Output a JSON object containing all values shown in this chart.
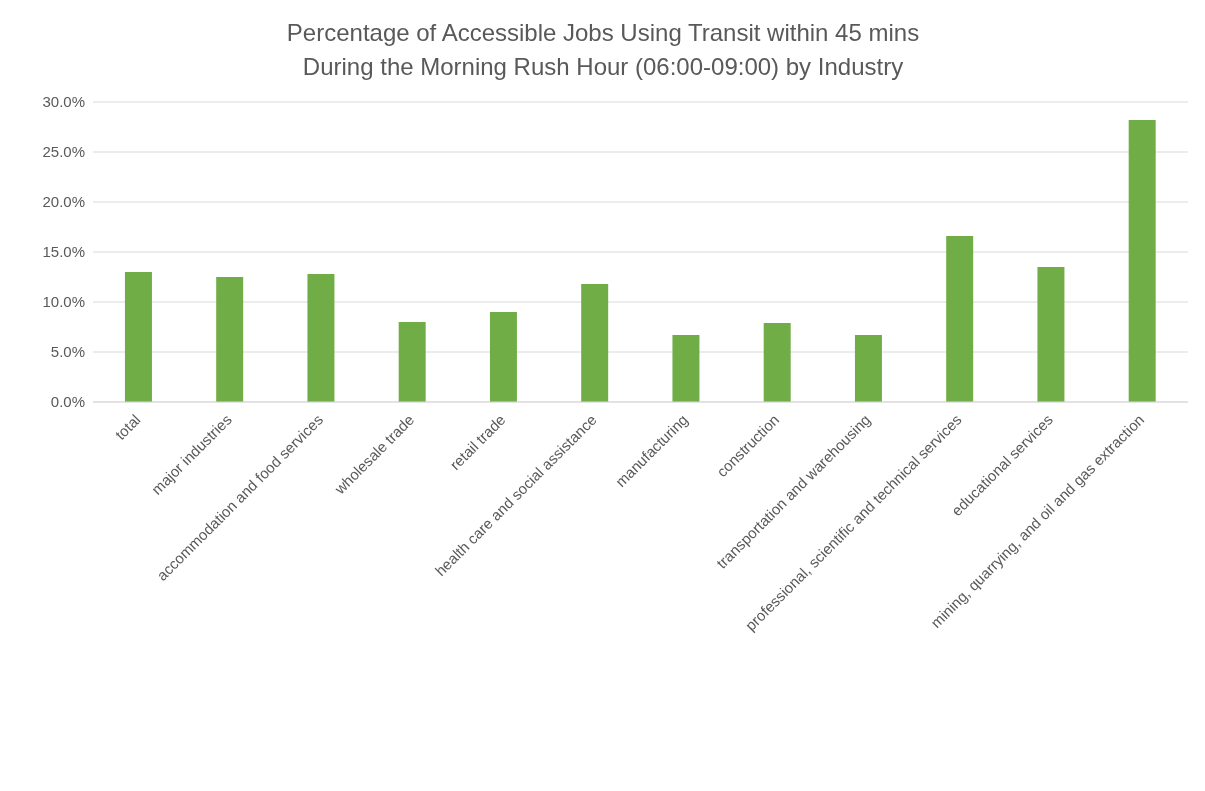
{
  "chart_data": {
    "type": "bar",
    "title": "Percentage of Accessible Jobs Using Transit within 45 mins\nDuring the Morning Rush Hour (06:00-09:00) by Industry",
    "categories": [
      "total",
      "major industries",
      "accommodation and food services",
      "wholesale trade",
      "retail trade",
      "health care and social assistance",
      "manufacturing",
      "construction",
      "transportation and warehousing",
      "professional, scientific and technical services",
      "educational services",
      "mining, quarrying, and oil and gas extraction"
    ],
    "values": [
      13.0,
      12.5,
      12.8,
      8.0,
      9.0,
      11.8,
      6.7,
      7.9,
      6.7,
      16.6,
      13.5,
      28.2
    ],
    "color": "#70ad47",
    "ylim": [
      0,
      30
    ],
    "yticks": [
      {
        "value": 0,
        "label": "0.0%"
      },
      {
        "value": 5,
        "label": "5.0%"
      },
      {
        "value": 10,
        "label": "10.0%"
      },
      {
        "value": 15,
        "label": "15.0%"
      },
      {
        "value": 20,
        "label": "20.0%"
      },
      {
        "value": 25,
        "label": "25.0%"
      },
      {
        "value": 30,
        "label": "30.0%"
      }
    ],
    "grid": "y"
  }
}
